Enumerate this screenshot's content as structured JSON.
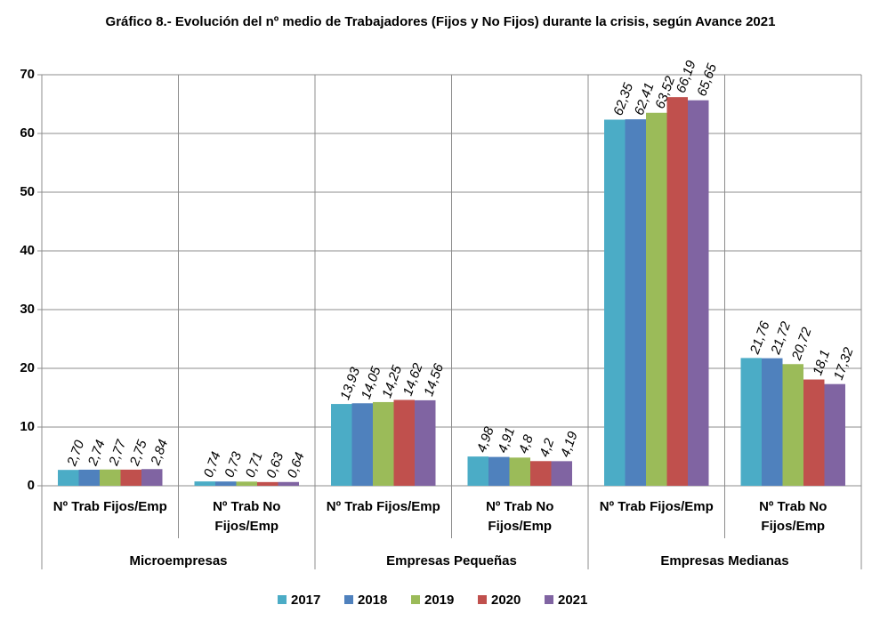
{
  "chart_data": {
    "type": "bar",
    "title": "Gráfico 8.- Evolución del nº medio de Trabajadores  (Fijos y No Fijos) durante la crisis, según Avance 2021",
    "categories": [
      "Nº Trab Fijos/Emp",
      "Nº Trab No Fijos/Emp",
      "Nº Trab Fijos/Emp",
      "Nº Trab No Fijos/Emp",
      "Nº Trab Fijos/Emp",
      "Nº Trab No Fijos/Emp"
    ],
    "groups": [
      "Microempresas",
      "Empresas Pequeñas",
      "Empresas Medianas"
    ],
    "series": [
      {
        "name": "2017",
        "color": "#4bacc6",
        "values": [
          2.7,
          0.74,
          13.93,
          4.98,
          62.35,
          21.76
        ],
        "value_labels": [
          "2,70",
          "0,74",
          "13,93",
          "4,98",
          "62,35",
          "21,76"
        ]
      },
      {
        "name": "2018",
        "color": "#4f81bd",
        "values": [
          2.74,
          0.73,
          14.05,
          4.91,
          62.41,
          21.72
        ],
        "value_labels": [
          "2,74",
          "0,73",
          "14,05",
          "4,91",
          "62,41",
          "21,72"
        ]
      },
      {
        "name": "2019",
        "color": "#9bbb59",
        "values": [
          2.77,
          0.71,
          14.25,
          4.8,
          63.52,
          20.72
        ],
        "value_labels": [
          "2,77",
          "0,71",
          "14,25",
          "4,8",
          "63,52",
          "20,72"
        ]
      },
      {
        "name": "2020",
        "color": "#c0504d",
        "values": [
          2.75,
          0.63,
          14.62,
          4.2,
          66.19,
          18.1
        ],
        "value_labels": [
          "2,75",
          "0,63",
          "14,62",
          "4,2",
          "66,19",
          "18,1"
        ]
      },
      {
        "name": "2021",
        "color": "#8064a2",
        "values": [
          2.84,
          0.64,
          14.56,
          4.19,
          65.65,
          17.32
        ],
        "value_labels": [
          "2,84",
          "0,64",
          "14,56",
          "4,19",
          "65,65",
          "17,32"
        ]
      }
    ],
    "ylim": [
      0,
      70
    ],
    "yticks": [
      0,
      10,
      20,
      30,
      40,
      50,
      60,
      70
    ],
    "grid": true,
    "legend": "bottom"
  }
}
